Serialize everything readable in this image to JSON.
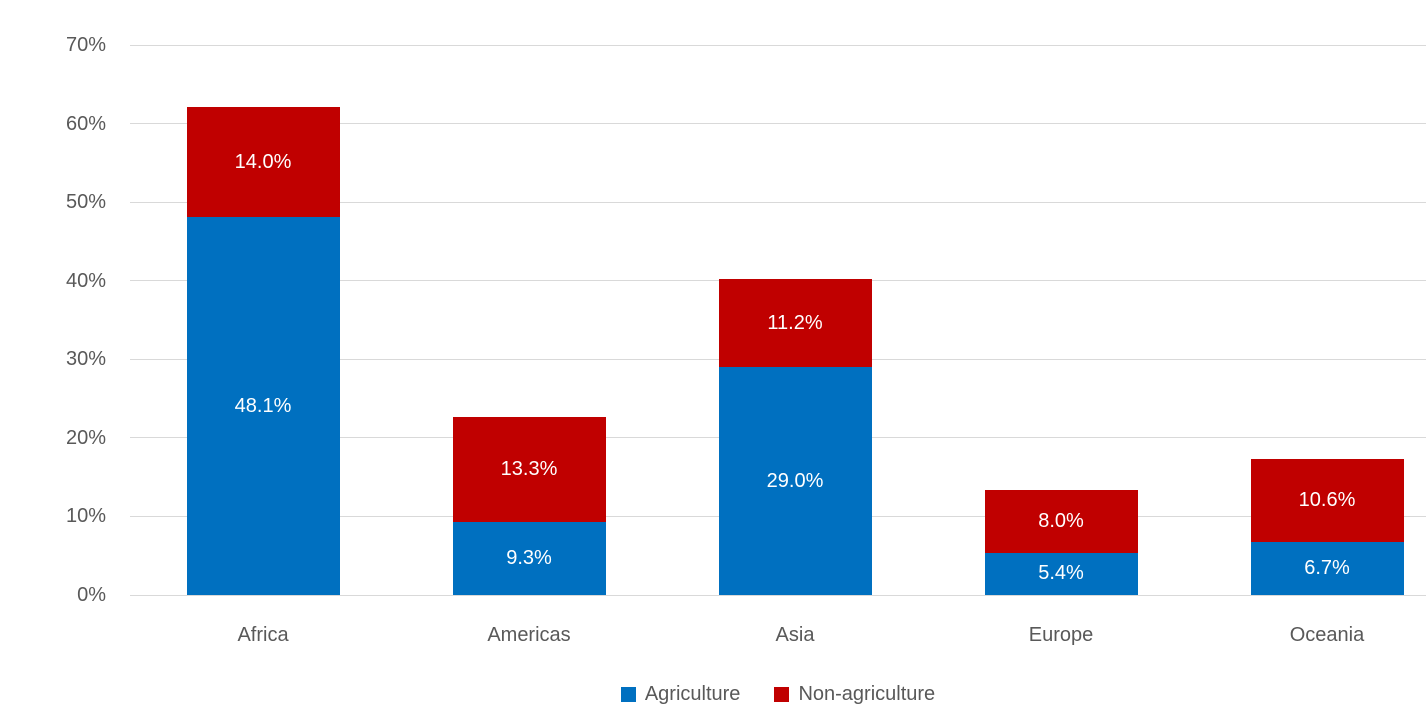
{
  "chart_data": {
    "type": "bar",
    "stacked": true,
    "title": "",
    "xlabel": "",
    "ylabel": "",
    "categories": [
      "Africa",
      "Americas",
      "Asia",
      "Europe",
      "Oceania"
    ],
    "series": [
      {
        "name": "Agriculture",
        "color": "#0070C0",
        "values": [
          48.1,
          9.3,
          29.0,
          5.4,
          6.7
        ],
        "labels": [
          "48.1%",
          "9.3%",
          "29.0%",
          "5.4%",
          "6.7%"
        ]
      },
      {
        "name": "Non-agriculture",
        "color": "#C00000",
        "values": [
          14.0,
          13.3,
          11.2,
          8.0,
          10.6
        ],
        "labels": [
          "14.0%",
          "13.3%",
          "11.2%",
          "8.0%",
          "10.6%"
        ]
      }
    ],
    "ylim": [
      0,
      70
    ],
    "ytick_step": 10,
    "ytick_labels": [
      "0%",
      "10%",
      "20%",
      "30%",
      "40%",
      "50%",
      "60%",
      "70%"
    ],
    "grid": true,
    "legend_position": "bottom",
    "colors": {
      "background": "#FFFFFF",
      "gridline": "#D9D9D9",
      "axis_text": "#595959",
      "data_label_text": "#FFFFFF"
    }
  }
}
